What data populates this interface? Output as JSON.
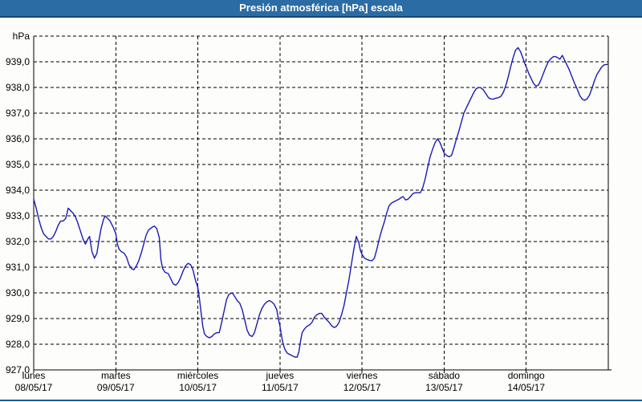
{
  "window": {
    "title": "Presión atmosférica [hPa] escala"
  },
  "colors": {
    "titlebar_bg": "#2b6ca4",
    "titlebar_border": "#14476f",
    "outer_border": "#1b5a8a",
    "plot_bg": "#fdfdfb",
    "grid": "#000000",
    "line": "#1a1ab8",
    "label_text": "#000000"
  },
  "chart_data": {
    "type": "line",
    "title": "Presión atmosférica [hPa] escala",
    "unit_top_label": "hPa",
    "ylim": [
      927,
      940
    ],
    "ytick_step": 1,
    "yticks": [
      {
        "v": 940,
        "label": "hPa"
      },
      {
        "v": 939,
        "label": "939,0"
      },
      {
        "v": 938,
        "label": "938,0"
      },
      {
        "v": 937,
        "label": "937,0"
      },
      {
        "v": 936,
        "label": "936,0"
      },
      {
        "v": 935,
        "label": "935,0"
      },
      {
        "v": 934,
        "label": "934,0"
      },
      {
        "v": 933,
        "label": "933,0"
      },
      {
        "v": 932,
        "label": "932,0"
      },
      {
        "v": 931,
        "label": "931,0"
      },
      {
        "v": 930,
        "label": "930,0"
      },
      {
        "v": 929,
        "label": "929,0"
      },
      {
        "v": 928,
        "label": "928,0"
      },
      {
        "v": 927,
        "label": "927,0"
      }
    ],
    "x_days": [
      {
        "name": "lunes",
        "date": "08/05/17"
      },
      {
        "name": "martes",
        "date": "09/05/17"
      },
      {
        "name": "miércoles",
        "date": "10/05/17"
      },
      {
        "name": "jueves",
        "date": "11/05/17"
      },
      {
        "name": "viernes",
        "date": "12/05/17"
      },
      {
        "name": "sábado",
        "date": "13/05/17"
      },
      {
        "name": "domingo",
        "date": "14/05/17"
      }
    ],
    "xlim_days": [
      0,
      7
    ],
    "grid": "dashed",
    "legend": "none",
    "series": [
      {
        "name": "Presión atmosférica",
        "color": "#1a1ab8",
        "points": [
          [
            0.0,
            933.65
          ],
          [
            0.03,
            933.3
          ],
          [
            0.06,
            932.9
          ],
          [
            0.09,
            932.55
          ],
          [
            0.12,
            932.3
          ],
          [
            0.15,
            932.2
          ],
          [
            0.18,
            932.1
          ],
          [
            0.21,
            932.1
          ],
          [
            0.24,
            932.2
          ],
          [
            0.27,
            932.4
          ],
          [
            0.3,
            932.65
          ],
          [
            0.33,
            932.8
          ],
          [
            0.36,
            932.8
          ],
          [
            0.39,
            932.9
          ],
          [
            0.42,
            933.3
          ],
          [
            0.45,
            933.2
          ],
          [
            0.48,
            933.1
          ],
          [
            0.51,
            932.95
          ],
          [
            0.54,
            932.7
          ],
          [
            0.57,
            932.4
          ],
          [
            0.6,
            932.1
          ],
          [
            0.63,
            931.9
          ],
          [
            0.66,
            932.1
          ],
          [
            0.68,
            932.2
          ],
          [
            0.71,
            931.6
          ],
          [
            0.74,
            931.35
          ],
          [
            0.77,
            931.55
          ],
          [
            0.79,
            931.95
          ],
          [
            0.82,
            932.5
          ],
          [
            0.85,
            932.85
          ],
          [
            0.87,
            933.0
          ],
          [
            0.9,
            932.9
          ],
          [
            0.93,
            932.8
          ],
          [
            0.97,
            932.55
          ],
          [
            1.0,
            932.3
          ],
          [
            1.02,
            931.9
          ],
          [
            1.04,
            931.7
          ],
          [
            1.07,
            931.6
          ],
          [
            1.1,
            931.55
          ],
          [
            1.13,
            931.4
          ],
          [
            1.16,
            931.1
          ],
          [
            1.19,
            930.95
          ],
          [
            1.22,
            930.9
          ],
          [
            1.25,
            931.05
          ],
          [
            1.28,
            931.25
          ],
          [
            1.31,
            931.55
          ],
          [
            1.34,
            931.9
          ],
          [
            1.37,
            932.25
          ],
          [
            1.4,
            932.45
          ],
          [
            1.44,
            932.55
          ],
          [
            1.47,
            932.6
          ],
          [
            1.5,
            932.5
          ],
          [
            1.53,
            932.15
          ],
          [
            1.55,
            931.3
          ],
          [
            1.57,
            930.95
          ],
          [
            1.6,
            930.8
          ],
          [
            1.64,
            930.75
          ],
          [
            1.67,
            930.55
          ],
          [
            1.7,
            930.35
          ],
          [
            1.73,
            930.3
          ],
          [
            1.76,
            930.4
          ],
          [
            1.79,
            930.6
          ],
          [
            1.82,
            930.85
          ],
          [
            1.85,
            931.05
          ],
          [
            1.88,
            931.15
          ],
          [
            1.91,
            931.1
          ],
          [
            1.94,
            930.9
          ],
          [
            1.97,
            930.5
          ],
          [
            2.0,
            930.2
          ],
          [
            2.02,
            929.75
          ],
          [
            2.04,
            929.2
          ],
          [
            2.06,
            928.7
          ],
          [
            2.08,
            928.4
          ],
          [
            2.11,
            928.3
          ],
          [
            2.14,
            928.25
          ],
          [
            2.17,
            928.3
          ],
          [
            2.2,
            928.4
          ],
          [
            2.23,
            928.45
          ],
          [
            2.26,
            928.45
          ],
          [
            2.29,
            928.85
          ],
          [
            2.32,
            929.3
          ],
          [
            2.35,
            929.75
          ],
          [
            2.38,
            929.95
          ],
          [
            2.42,
            930.0
          ],
          [
            2.45,
            929.85
          ],
          [
            2.48,
            929.7
          ],
          [
            2.51,
            929.6
          ],
          [
            2.54,
            929.35
          ],
          [
            2.57,
            928.95
          ],
          [
            2.6,
            928.55
          ],
          [
            2.63,
            928.35
          ],
          [
            2.66,
            928.3
          ],
          [
            2.69,
            928.45
          ],
          [
            2.72,
            928.8
          ],
          [
            2.75,
            929.15
          ],
          [
            2.78,
            929.4
          ],
          [
            2.81,
            929.55
          ],
          [
            2.84,
            929.65
          ],
          [
            2.87,
            929.7
          ],
          [
            2.9,
            929.65
          ],
          [
            2.93,
            929.55
          ],
          [
            2.96,
            929.35
          ],
          [
            2.98,
            929.0
          ],
          [
            3.0,
            928.7
          ],
          [
            3.02,
            928.3
          ],
          [
            3.04,
            928.0
          ],
          [
            3.06,
            927.8
          ],
          [
            3.09,
            927.65
          ],
          [
            3.12,
            927.6
          ],
          [
            3.15,
            927.55
          ],
          [
            3.18,
            927.5
          ],
          [
            3.21,
            927.5
          ],
          [
            3.23,
            927.7
          ],
          [
            3.25,
            928.1
          ],
          [
            3.27,
            928.45
          ],
          [
            3.3,
            928.6
          ],
          [
            3.33,
            928.7
          ],
          [
            3.36,
            928.75
          ],
          [
            3.39,
            928.85
          ],
          [
            3.42,
            929.05
          ],
          [
            3.45,
            929.15
          ],
          [
            3.48,
            929.2
          ],
          [
            3.51,
            929.2
          ],
          [
            3.54,
            929.05
          ],
          [
            3.57,
            928.95
          ],
          [
            3.6,
            928.85
          ],
          [
            3.63,
            928.72
          ],
          [
            3.66,
            928.65
          ],
          [
            3.69,
            928.7
          ],
          [
            3.72,
            928.85
          ],
          [
            3.75,
            929.15
          ],
          [
            3.78,
            929.5
          ],
          [
            3.81,
            930.0
          ],
          [
            3.84,
            930.5
          ],
          [
            3.87,
            931.1
          ],
          [
            3.9,
            931.7
          ],
          [
            3.93,
            932.2
          ],
          [
            3.96,
            931.95
          ],
          [
            3.98,
            931.65
          ],
          [
            4.0,
            931.5
          ],
          [
            4.03,
            931.35
          ],
          [
            4.06,
            931.3
          ],
          [
            4.09,
            931.27
          ],
          [
            4.12,
            931.25
          ],
          [
            4.15,
            931.35
          ],
          [
            4.18,
            931.7
          ],
          [
            4.21,
            932.1
          ],
          [
            4.24,
            932.45
          ],
          [
            4.27,
            932.75
          ],
          [
            4.3,
            933.1
          ],
          [
            4.33,
            933.4
          ],
          [
            4.36,
            933.5
          ],
          [
            4.39,
            933.55
          ],
          [
            4.42,
            933.6
          ],
          [
            4.45,
            933.65
          ],
          [
            4.48,
            933.72
          ],
          [
            4.5,
            933.75
          ],
          [
            4.53,
            933.62
          ],
          [
            4.56,
            933.65
          ],
          [
            4.59,
            933.75
          ],
          [
            4.62,
            933.87
          ],
          [
            4.65,
            933.9
          ],
          [
            4.68,
            933.9
          ],
          [
            4.71,
            933.9
          ],
          [
            4.74,
            934.1
          ],
          [
            4.77,
            934.45
          ],
          [
            4.8,
            934.9
          ],
          [
            4.83,
            935.3
          ],
          [
            4.86,
            935.6
          ],
          [
            4.89,
            935.85
          ],
          [
            4.92,
            936.0
          ],
          [
            4.95,
            935.85
          ],
          [
            4.98,
            935.6
          ],
          [
            5.0,
            935.45
          ],
          [
            5.03,
            935.35
          ],
          [
            5.06,
            935.3
          ],
          [
            5.09,
            935.35
          ],
          [
            5.12,
            935.65
          ],
          [
            5.15,
            936.0
          ],
          [
            5.18,
            936.3
          ],
          [
            5.21,
            936.65
          ],
          [
            5.24,
            937.0
          ],
          [
            5.27,
            937.2
          ],
          [
            5.3,
            937.4
          ],
          [
            5.33,
            937.6
          ],
          [
            5.36,
            937.8
          ],
          [
            5.39,
            937.95
          ],
          [
            5.42,
            938.0
          ],
          [
            5.45,
            937.98
          ],
          [
            5.48,
            937.9
          ],
          [
            5.51,
            937.75
          ],
          [
            5.54,
            937.6
          ],
          [
            5.57,
            937.55
          ],
          [
            5.6,
            937.55
          ],
          [
            5.63,
            937.58
          ],
          [
            5.66,
            937.6
          ],
          [
            5.69,
            937.65
          ],
          [
            5.72,
            937.8
          ],
          [
            5.75,
            938.05
          ],
          [
            5.78,
            938.4
          ],
          [
            5.81,
            938.8
          ],
          [
            5.84,
            939.15
          ],
          [
            5.87,
            939.45
          ],
          [
            5.9,
            939.55
          ],
          [
            5.93,
            939.4
          ],
          [
            5.96,
            939.15
          ],
          [
            5.98,
            938.95
          ],
          [
            6.0,
            938.8
          ],
          [
            6.03,
            938.55
          ],
          [
            6.06,
            938.35
          ],
          [
            6.09,
            938.15
          ],
          [
            6.12,
            938.05
          ],
          [
            6.15,
            938.1
          ],
          [
            6.18,
            938.3
          ],
          [
            6.21,
            938.55
          ],
          [
            6.24,
            938.8
          ],
          [
            6.27,
            939.0
          ],
          [
            6.3,
            939.12
          ],
          [
            6.33,
            939.2
          ],
          [
            6.36,
            939.2
          ],
          [
            6.39,
            939.15
          ],
          [
            6.41,
            939.1
          ],
          [
            6.44,
            939.25
          ],
          [
            6.47,
            939.05
          ],
          [
            6.5,
            938.85
          ],
          [
            6.53,
            938.65
          ],
          [
            6.56,
            938.4
          ],
          [
            6.59,
            938.15
          ],
          [
            6.62,
            937.95
          ],
          [
            6.65,
            937.7
          ],
          [
            6.68,
            937.55
          ],
          [
            6.71,
            937.5
          ],
          [
            6.74,
            937.55
          ],
          [
            6.77,
            937.7
          ],
          [
            6.8,
            937.95
          ],
          [
            6.83,
            938.25
          ],
          [
            6.86,
            938.5
          ],
          [
            6.89,
            938.65
          ],
          [
            6.92,
            938.8
          ],
          [
            6.95,
            938.88
          ],
          [
            6.99,
            938.9
          ]
        ]
      }
    ]
  }
}
